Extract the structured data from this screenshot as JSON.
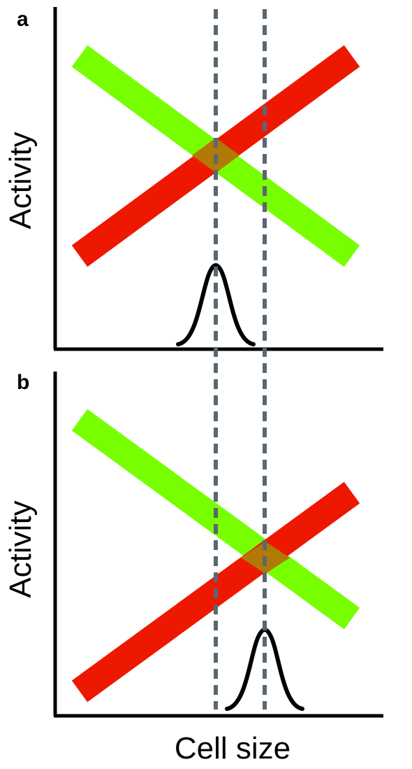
{
  "panels": [
    {
      "letter": "a",
      "ylabel": "Activity"
    },
    {
      "letter": "b",
      "ylabel": "Activity"
    }
  ],
  "xlabel": "Cell size",
  "colors": {
    "green_band": "#77ff00",
    "red_band": "#ee1800",
    "overlap": "#b07a05",
    "dashed_line": "#5b6770",
    "axis": "#000000",
    "curve": "#000000"
  }
}
